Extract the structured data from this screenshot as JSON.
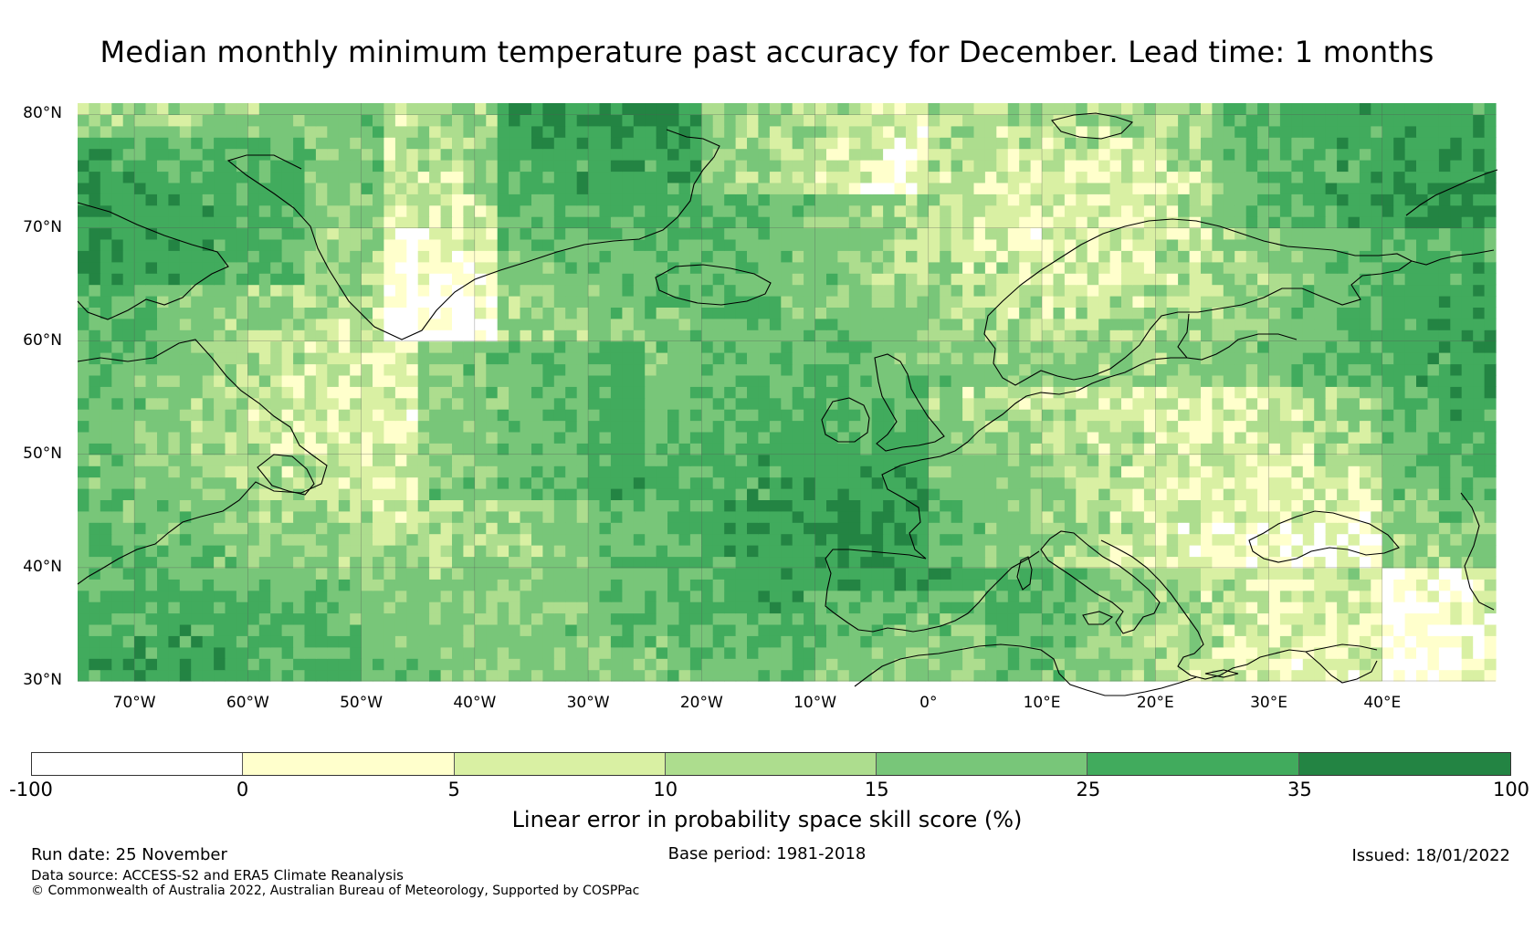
{
  "title": "Median monthly minimum temperature past accuracy for December. Lead time: 1 months",
  "map": {
    "projection": "equirectangular",
    "lon_range": [
      -75,
      50
    ],
    "lat_range": [
      30,
      81
    ],
    "lat_labels": [
      "80°N",
      "70°N",
      "60°N",
      "50°N",
      "40°N",
      "30°N"
    ],
    "lat_values": [
      80,
      70,
      60,
      50,
      40,
      30
    ],
    "lon_labels": [
      "70°W",
      "60°W",
      "50°W",
      "40°W",
      "30°W",
      "20°W",
      "10°W",
      "0°",
      "10°E",
      "20°E",
      "30°E",
      "40°E"
    ],
    "lon_values": [
      -70,
      -60,
      -50,
      -40,
      -30,
      -20,
      -10,
      0,
      10,
      20,
      30,
      40
    ],
    "field": "Linear error in probability space skill score (%)",
    "region": "North Atlantic and Europe"
  },
  "colorbar": {
    "label": "Linear error in probability space skill score (%)",
    "ticks": [
      "-100",
      "0",
      "5",
      "10",
      "15",
      "25",
      "35",
      "100"
    ],
    "colors": [
      "#ffffff",
      "#ffffcc",
      "#d9f0a3",
      "#addd8e",
      "#78c679",
      "#41ab5d",
      "#238443"
    ]
  },
  "footer": {
    "run_date": "Run date: 25 November",
    "base_period": "Base period: 1981-2018",
    "issued": "Issued: 18/01/2022",
    "data_source": "Data source: ACCESS-S2 and ERA5 Climate Reanalysis",
    "copyright": "© Commonwealth of Australia 2022, Australian Bureau of Meteorology, Supported by COSPPac"
  }
}
